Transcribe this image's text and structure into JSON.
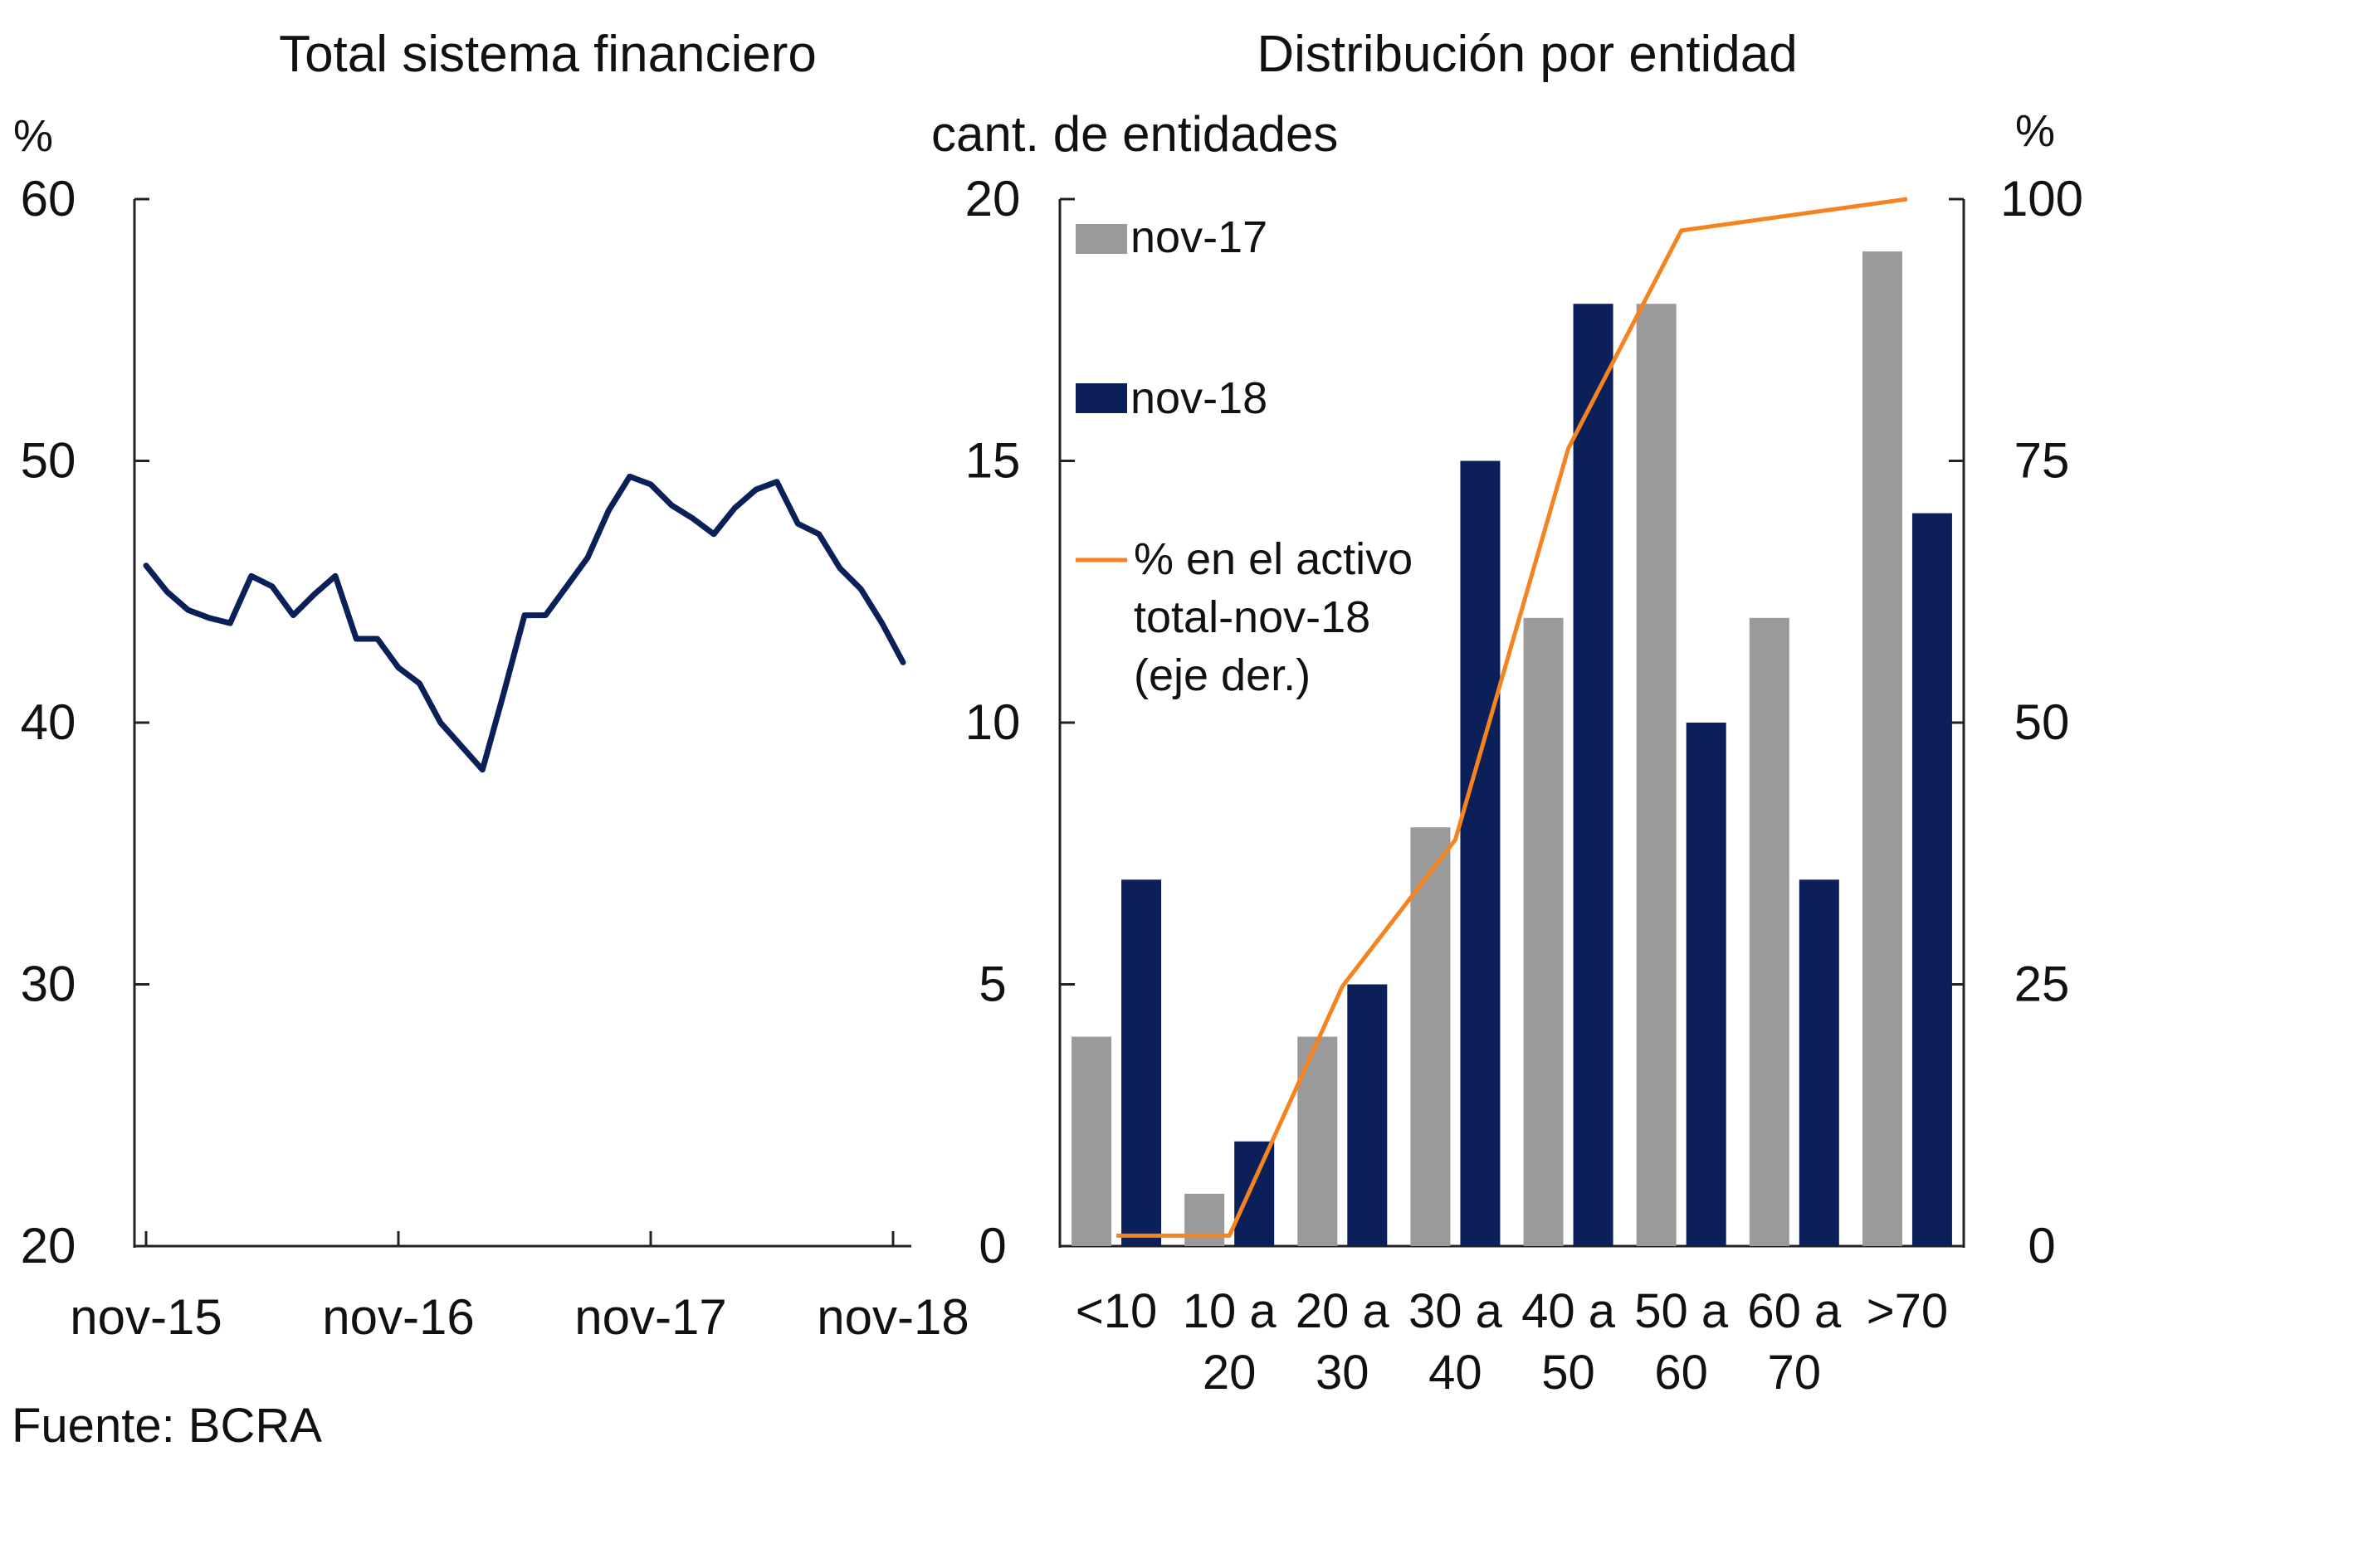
{
  "colors": {
    "nov17": "#9a9a9a",
    "nov18": "#0b2058",
    "line_left": "#0b2058",
    "line_right": "#f5831f",
    "axis": "#222222"
  },
  "source": "Fuente: BCRA",
  "chart_data": [
    {
      "type": "line",
      "title": "Total sistema financiero",
      "ylabel": "%",
      "ylim": [
        20,
        60
      ],
      "yticks": [
        20,
        30,
        40,
        50,
        60
      ],
      "xtick_labels": [
        "nov-15",
        "nov-16",
        "nov-17",
        "nov-18"
      ],
      "xtick_index": [
        0,
        12,
        24,
        36
      ],
      "series": [
        {
          "name": "Total sistema financiero",
          "values": [
            46.0,
            45.0,
            44.3,
            44.0,
            43.8,
            45.6,
            45.2,
            44.1,
            44.9,
            45.6,
            43.2,
            43.2,
            42.1,
            41.5,
            40.0,
            39.1,
            38.2,
            41.1,
            44.1,
            44.1,
            45.2,
            46.3,
            48.1,
            49.4,
            49.1,
            48.3,
            47.8,
            47.2,
            48.2,
            48.9,
            49.2,
            47.6,
            47.2,
            45.9,
            45.1,
            43.8,
            42.3
          ]
        }
      ]
    },
    {
      "type": "bar",
      "title": "Distribución por entidad",
      "ylabel": "cant. de entidades",
      "y2label": "%",
      "ylim": [
        0,
        20
      ],
      "yticks": [
        0,
        5,
        10,
        15,
        20
      ],
      "y2lim": [
        0,
        100
      ],
      "y2ticks": [
        0,
        25,
        50,
        75,
        100
      ],
      "categories": [
        [
          "<10",
          ""
        ],
        [
          "10 a",
          "20"
        ],
        [
          "20 a",
          "30"
        ],
        [
          "30 a",
          "40"
        ],
        [
          "40 a",
          "50"
        ],
        [
          "50 a",
          "60"
        ],
        [
          "60 a",
          "70"
        ],
        [
          ">70",
          ""
        ]
      ],
      "series": [
        {
          "name": "nov-17",
          "values": [
            4,
            1,
            4,
            8,
            12,
            18,
            12,
            19
          ]
        },
        {
          "name": "nov-18",
          "values": [
            7,
            2,
            5,
            15,
            18,
            10,
            7,
            14
          ]
        }
      ],
      "line_series": {
        "name": "% en el activo total-nov-18 (eje der.)",
        "legend_lines": [
          "% en el activo",
          "total-nov-18",
          "(eje der.)"
        ],
        "axis": "right",
        "values": [
          1,
          1,
          24.8,
          38.8,
          76.2,
          97,
          98.5,
          100
        ]
      }
    }
  ]
}
